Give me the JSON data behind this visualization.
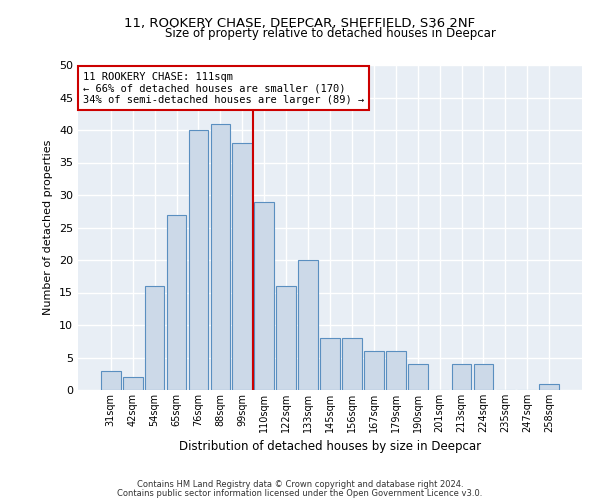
{
  "title1": "11, ROOKERY CHASE, DEEPCAR, SHEFFIELD, S36 2NF",
  "title2": "Size of property relative to detached houses in Deepcar",
  "xlabel": "Distribution of detached houses by size in Deepcar",
  "ylabel": "Number of detached properties",
  "footer1": "Contains HM Land Registry data © Crown copyright and database right 2024.",
  "footer2": "Contains public sector information licensed under the Open Government Licence v3.0.",
  "categories": [
    "31sqm",
    "42sqm",
    "54sqm",
    "65sqm",
    "76sqm",
    "88sqm",
    "99sqm",
    "110sqm",
    "122sqm",
    "133sqm",
    "145sqm",
    "156sqm",
    "167sqm",
    "179sqm",
    "190sqm",
    "201sqm",
    "213sqm",
    "224sqm",
    "235sqm",
    "247sqm",
    "258sqm"
  ],
  "values": [
    3,
    2,
    16,
    27,
    40,
    41,
    38,
    29,
    16,
    20,
    8,
    8,
    6,
    6,
    4,
    0,
    4,
    4,
    0,
    0,
    1
  ],
  "bar_color": "#ccd9e8",
  "bar_edge_color": "#5a8fc0",
  "bg_color": "#e8eef5",
  "grid_color": "#ffffff",
  "vline_idx": 7,
  "vline_color": "#cc0000",
  "annotation_text": "11 ROOKERY CHASE: 111sqm\n← 66% of detached houses are smaller (170)\n34% of semi-detached houses are larger (89) →",
  "annotation_box_color": "#cc0000",
  "ylim": [
    0,
    50
  ],
  "yticks": [
    0,
    5,
    10,
    15,
    20,
    25,
    30,
    35,
    40,
    45,
    50
  ]
}
